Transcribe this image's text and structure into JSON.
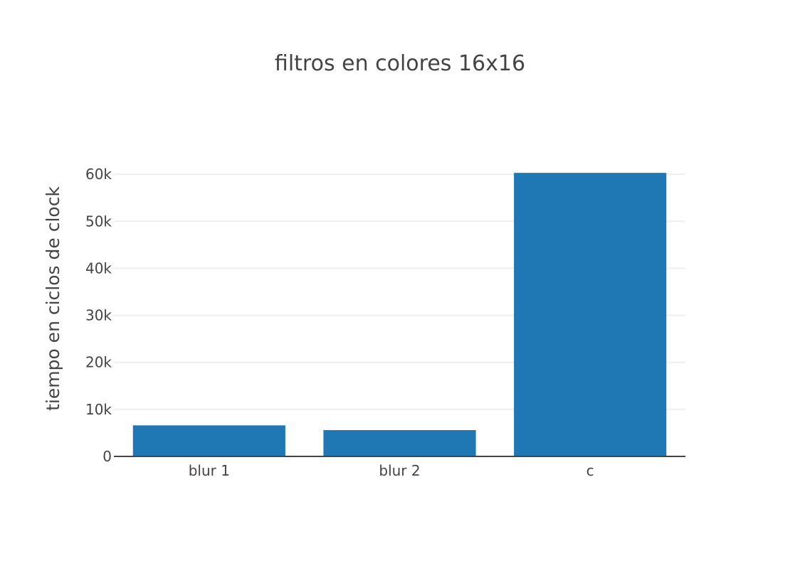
{
  "chart_data": {
    "type": "bar",
    "title": "filtros en colores 16x16",
    "xlabel": "",
    "ylabel": "tiempo en ciclos de clock",
    "categories": [
      "blur 1",
      "blur 2",
      "c"
    ],
    "values": [
      6600,
      5600,
      60300
    ],
    "ylim": [
      0,
      63500
    ],
    "yticks": [
      0,
      10000,
      20000,
      30000,
      40000,
      50000,
      60000
    ],
    "ytick_labels": [
      "0",
      "10k",
      "20k",
      "30k",
      "40k",
      "50k",
      "60k"
    ],
    "grid": true,
    "legend": "none",
    "bar_color": "#1f77b4",
    "grid_color": "#eeeeee",
    "axis_color": "#444444"
  }
}
